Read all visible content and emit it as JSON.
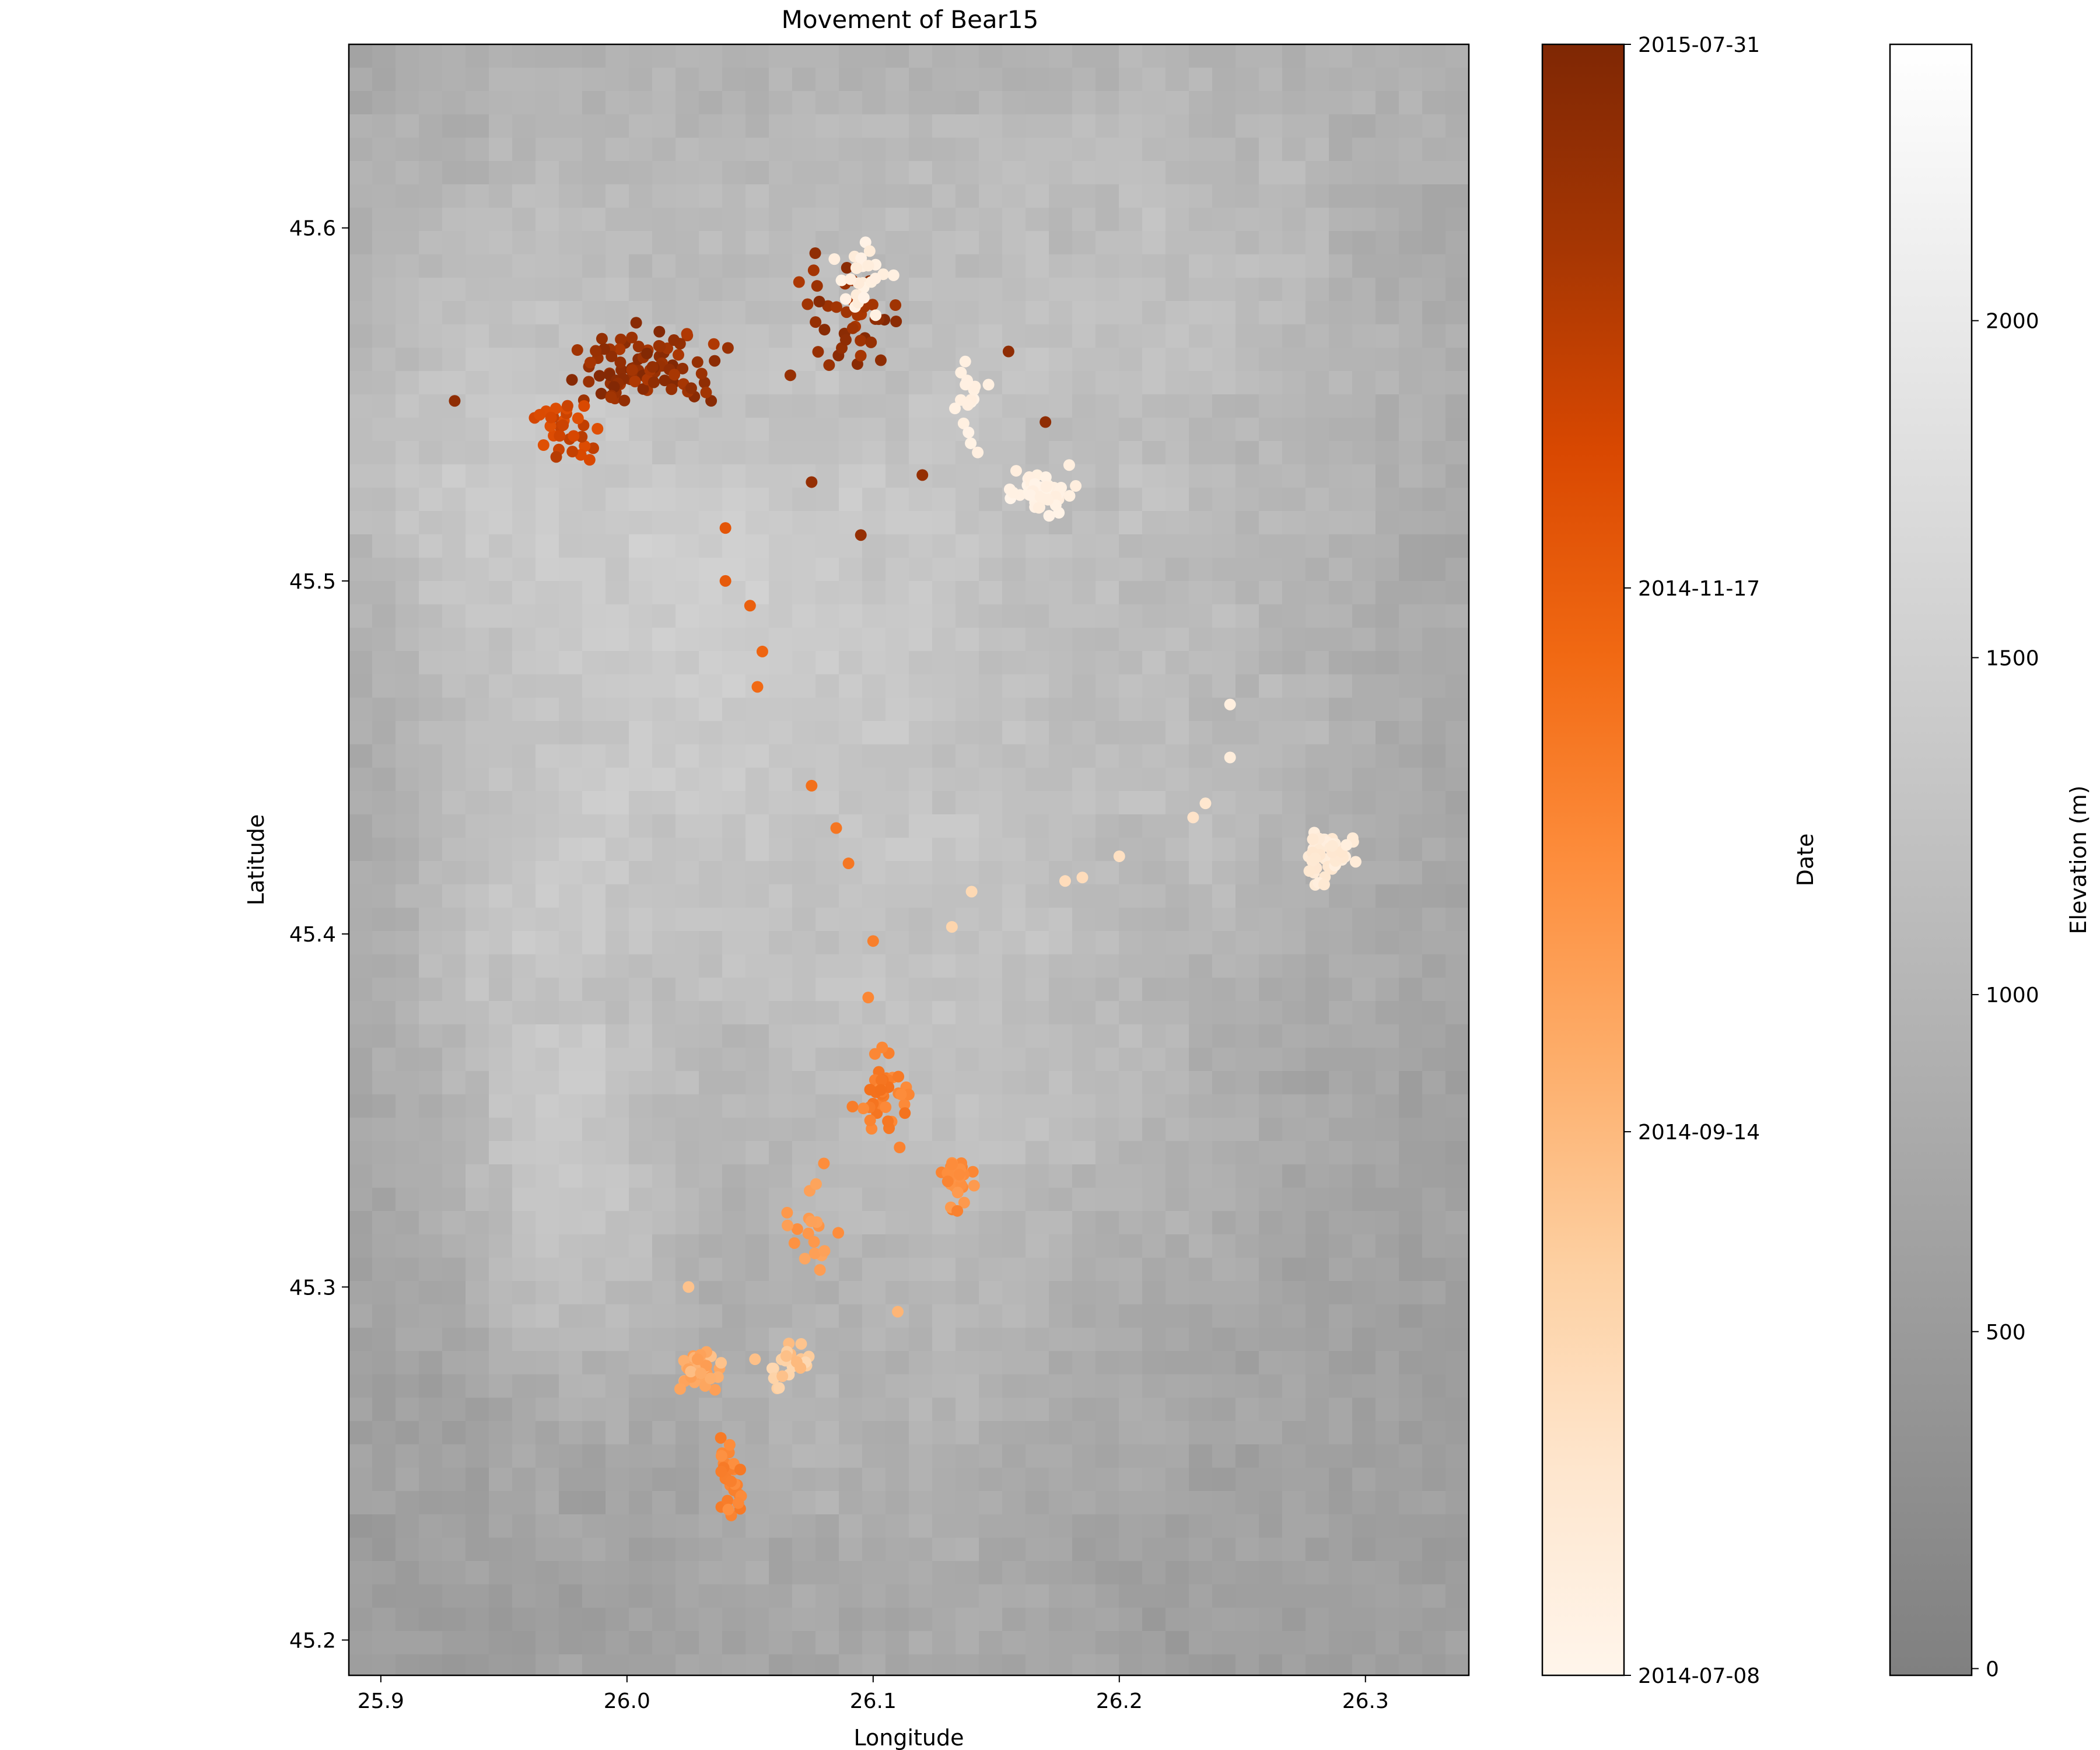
{
  "chart_data": {
    "type": "scatter",
    "title": "Movement of Bear15",
    "xlabel": "Longitude",
    "ylabel": "Latitude",
    "xlim": [
      25.887,
      26.342
    ],
    "ylim": [
      45.19,
      45.652
    ],
    "xticks": [
      "25.9",
      "26.0",
      "26.1",
      "26.2",
      "26.3"
    ],
    "yticks": [
      "45.2",
      "45.3",
      "45.4",
      "45.5",
      "45.6"
    ],
    "date_colorbar": {
      "label": "Date",
      "cmap": "Oranges",
      "ticks": [
        "2015-07-31",
        "2014-11-17",
        "2014-09-14",
        "2014-07-08"
      ],
      "tick_fractions": [
        1.0,
        0.6667,
        0.3333,
        0.0
      ]
    },
    "elevation_colorbar": {
      "label": "Elevation (m)",
      "cmap": "gray",
      "range": [
        -10,
        2410
      ],
      "ticks": [
        "0",
        "500",
        "1000",
        "1500",
        "2000"
      ],
      "tick_values": [
        0,
        500,
        1000,
        1500,
        2000
      ]
    },
    "clusters": [
      {
        "lon": 26.005,
        "lat": 45.56,
        "spread_lon": 0.03,
        "spread_lat": 0.012,
        "n": 90,
        "date_frac": [
          0.85,
          0.99
        ]
      },
      {
        "lon": 25.975,
        "lat": 45.545,
        "spread_lon": 0.012,
        "spread_lat": 0.01,
        "n": 30,
        "date_frac": [
          0.72,
          0.84
        ]
      },
      {
        "lon": 26.09,
        "lat": 45.575,
        "spread_lon": 0.025,
        "spread_lat": 0.02,
        "n": 40,
        "date_frac": [
          0.86,
          0.99
        ]
      },
      {
        "lon": 26.095,
        "lat": 45.585,
        "spread_lon": 0.01,
        "spread_lat": 0.01,
        "n": 25,
        "date_frac": [
          0.02,
          0.08
        ]
      },
      {
        "lon": 26.17,
        "lat": 45.525,
        "spread_lon": 0.012,
        "spread_lat": 0.007,
        "n": 45,
        "date_frac": [
          0.01,
          0.06
        ]
      },
      {
        "lon": 26.14,
        "lat": 45.55,
        "spread_lon": 0.006,
        "spread_lat": 0.012,
        "n": 18,
        "date_frac": [
          0.02,
          0.06
        ]
      },
      {
        "lon": 26.285,
        "lat": 45.423,
        "spread_lon": 0.01,
        "spread_lat": 0.006,
        "n": 60,
        "date_frac": [
          0.05,
          0.12
        ]
      },
      {
        "lon": 26.105,
        "lat": 45.355,
        "spread_lon": 0.012,
        "spread_lat": 0.015,
        "n": 40,
        "date_frac": [
          0.5,
          0.6
        ]
      },
      {
        "lon": 26.135,
        "lat": 45.33,
        "spread_lon": 0.01,
        "spread_lat": 0.008,
        "n": 25,
        "date_frac": [
          0.45,
          0.55
        ]
      },
      {
        "lon": 26.03,
        "lat": 45.276,
        "spread_lon": 0.008,
        "spread_lat": 0.006,
        "n": 40,
        "date_frac": [
          0.3,
          0.45
        ]
      },
      {
        "lon": 26.065,
        "lat": 45.278,
        "spread_lon": 0.01,
        "spread_lat": 0.007,
        "n": 25,
        "date_frac": [
          0.2,
          0.35
        ]
      },
      {
        "lon": 26.042,
        "lat": 45.246,
        "spread_lon": 0.004,
        "spread_lat": 0.01,
        "n": 30,
        "date_frac": [
          0.48,
          0.58
        ]
      },
      {
        "lon": 26.075,
        "lat": 45.315,
        "spread_lon": 0.01,
        "spread_lat": 0.012,
        "n": 18,
        "date_frac": [
          0.4,
          0.5
        ]
      }
    ],
    "track_points": [
      {
        "lon": 26.04,
        "lat": 45.515,
        "d": 0.7
      },
      {
        "lon": 26.04,
        "lat": 45.5,
        "d": 0.68
      },
      {
        "lon": 26.05,
        "lat": 45.493,
        "d": 0.66
      },
      {
        "lon": 26.055,
        "lat": 45.48,
        "d": 0.64
      },
      {
        "lon": 26.053,
        "lat": 45.47,
        "d": 0.62
      },
      {
        "lon": 26.075,
        "lat": 45.442,
        "d": 0.6
      },
      {
        "lon": 26.085,
        "lat": 45.43,
        "d": 0.58
      },
      {
        "lon": 26.09,
        "lat": 45.42,
        "d": 0.58
      },
      {
        "lon": 26.1,
        "lat": 45.398,
        "d": 0.55
      },
      {
        "lon": 26.098,
        "lat": 45.382,
        "d": 0.52
      },
      {
        "lon": 26.245,
        "lat": 45.465,
        "d": 0.05
      },
      {
        "lon": 26.245,
        "lat": 45.45,
        "d": 0.07
      },
      {
        "lon": 26.235,
        "lat": 45.437,
        "d": 0.12
      },
      {
        "lon": 26.23,
        "lat": 45.433,
        "d": 0.14
      },
      {
        "lon": 26.2,
        "lat": 45.422,
        "d": 0.16
      },
      {
        "lon": 26.185,
        "lat": 45.416,
        "d": 0.18
      },
      {
        "lon": 26.178,
        "lat": 45.415,
        "d": 0.18
      },
      {
        "lon": 26.14,
        "lat": 45.412,
        "d": 0.2
      },
      {
        "lon": 26.132,
        "lat": 45.402,
        "d": 0.22
      },
      {
        "lon": 25.93,
        "lat": 45.551,
        "d": 0.95
      },
      {
        "lon": 26.08,
        "lat": 45.335,
        "d": 0.5
      },
      {
        "lon": 26.075,
        "lat": 45.528,
        "d": 0.93
      },
      {
        "lon": 26.095,
        "lat": 45.513,
        "d": 0.93
      },
      {
        "lon": 26.155,
        "lat": 45.565,
        "d": 0.95
      },
      {
        "lon": 26.17,
        "lat": 45.545,
        "d": 0.95
      },
      {
        "lon": 26.12,
        "lat": 45.53,
        "d": 0.93
      },
      {
        "lon": 26.025,
        "lat": 45.3,
        "d": 0.3
      },
      {
        "lon": 26.11,
        "lat": 45.293,
        "d": 0.35
      }
    ]
  }
}
